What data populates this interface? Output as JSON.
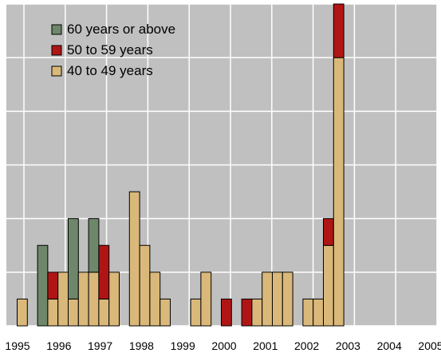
{
  "chart_data": {
    "type": "bar",
    "stacked": true,
    "title": "",
    "xlabel": "",
    "ylabel": "",
    "ylim": [
      0,
      6
    ],
    "grid": true,
    "legend_position": "top-left",
    "year_ticks": [
      "1995",
      "1996",
      "1997",
      "1998",
      "1999",
      "2000",
      "2001",
      "2002",
      "2003",
      "2004",
      "2005"
    ],
    "series": [
      {
        "name": "40 to 49 years",
        "color": "#d9b87a",
        "values": [
          0.5,
          0,
          0,
          0.5,
          1,
          0.5,
          1,
          1,
          0.5,
          1,
          0,
          2.5,
          1.5,
          1,
          0.5,
          0,
          0,
          0.5,
          1,
          0,
          0,
          0,
          0,
          0.5,
          1,
          1,
          1,
          0,
          0.5,
          0.5,
          1.5,
          5
        ]
      },
      {
        "name": "50 to 59 years",
        "color": "#b01515",
        "values": [
          0,
          0,
          0,
          0.5,
          0,
          0,
          0,
          0,
          1,
          0,
          0,
          0,
          0,
          0,
          0,
          0,
          0,
          0,
          0,
          0,
          0.5,
          0,
          0.5,
          0,
          0,
          0,
          0,
          0,
          0,
          0,
          0.5,
          1
        ]
      },
      {
        "name": "60 years or above",
        "color": "#6e876a",
        "values": [
          0,
          0,
          1.5,
          0,
          0,
          1.5,
          0,
          1,
          0,
          0,
          0,
          0,
          0,
          0,
          0,
          0,
          0,
          0,
          0,
          0,
          0,
          0,
          0,
          0,
          0,
          0,
          0,
          0,
          0,
          0,
          0,
          0
        ]
      }
    ],
    "legend": [
      {
        "label": "60 years or above",
        "color": "#6e876a"
      },
      {
        "label": "50 to 59 years",
        "color": "#b01515"
      },
      {
        "label": "40 to 49 years",
        "color": "#d9b87a"
      }
    ]
  }
}
